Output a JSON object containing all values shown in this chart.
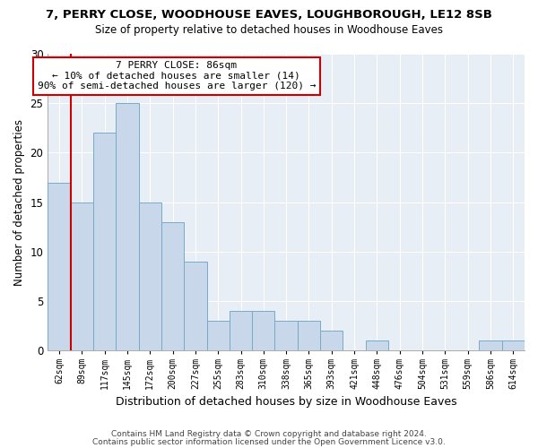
{
  "title1": "7, PERRY CLOSE, WOODHOUSE EAVES, LOUGHBOROUGH, LE12 8SB",
  "title2": "Size of property relative to detached houses in Woodhouse Eaves",
  "xlabel": "Distribution of detached houses by size in Woodhouse Eaves",
  "ylabel": "Number of detached properties",
  "bin_labels": [
    "62sqm",
    "89sqm",
    "117sqm",
    "145sqm",
    "172sqm",
    "200sqm",
    "227sqm",
    "255sqm",
    "283sqm",
    "310sqm",
    "338sqm",
    "365sqm",
    "393sqm",
    "421sqm",
    "448sqm",
    "476sqm",
    "504sqm",
    "531sqm",
    "559sqm",
    "586sqm",
    "614sqm"
  ],
  "bar_values": [
    17,
    15,
    22,
    25,
    15,
    13,
    9,
    3,
    4,
    4,
    3,
    3,
    2,
    0,
    1,
    0,
    0,
    0,
    0,
    1,
    1
  ],
  "bar_color": "#c8d8ea",
  "bar_edge_color": "#7aaac8",
  "vline_color": "#cc0000",
  "annotation_title": "7 PERRY CLOSE: 86sqm",
  "annotation_line1": "← 10% of detached houses are smaller (14)",
  "annotation_line2": "90% of semi-detached houses are larger (120) →",
  "annotation_box_color": "#ffffff",
  "annotation_box_edge": "#cc0000",
  "ylim": [
    0,
    30
  ],
  "yticks": [
    0,
    5,
    10,
    15,
    20,
    25,
    30
  ],
  "footer1": "Contains HM Land Registry data © Crown copyright and database right 2024.",
  "footer2": "Contains public sector information licensed under the Open Government Licence v3.0.",
  "bg_color": "#ffffff",
  "plot_bg_color": "#e8eef5",
  "grid_color": "#ffffff"
}
